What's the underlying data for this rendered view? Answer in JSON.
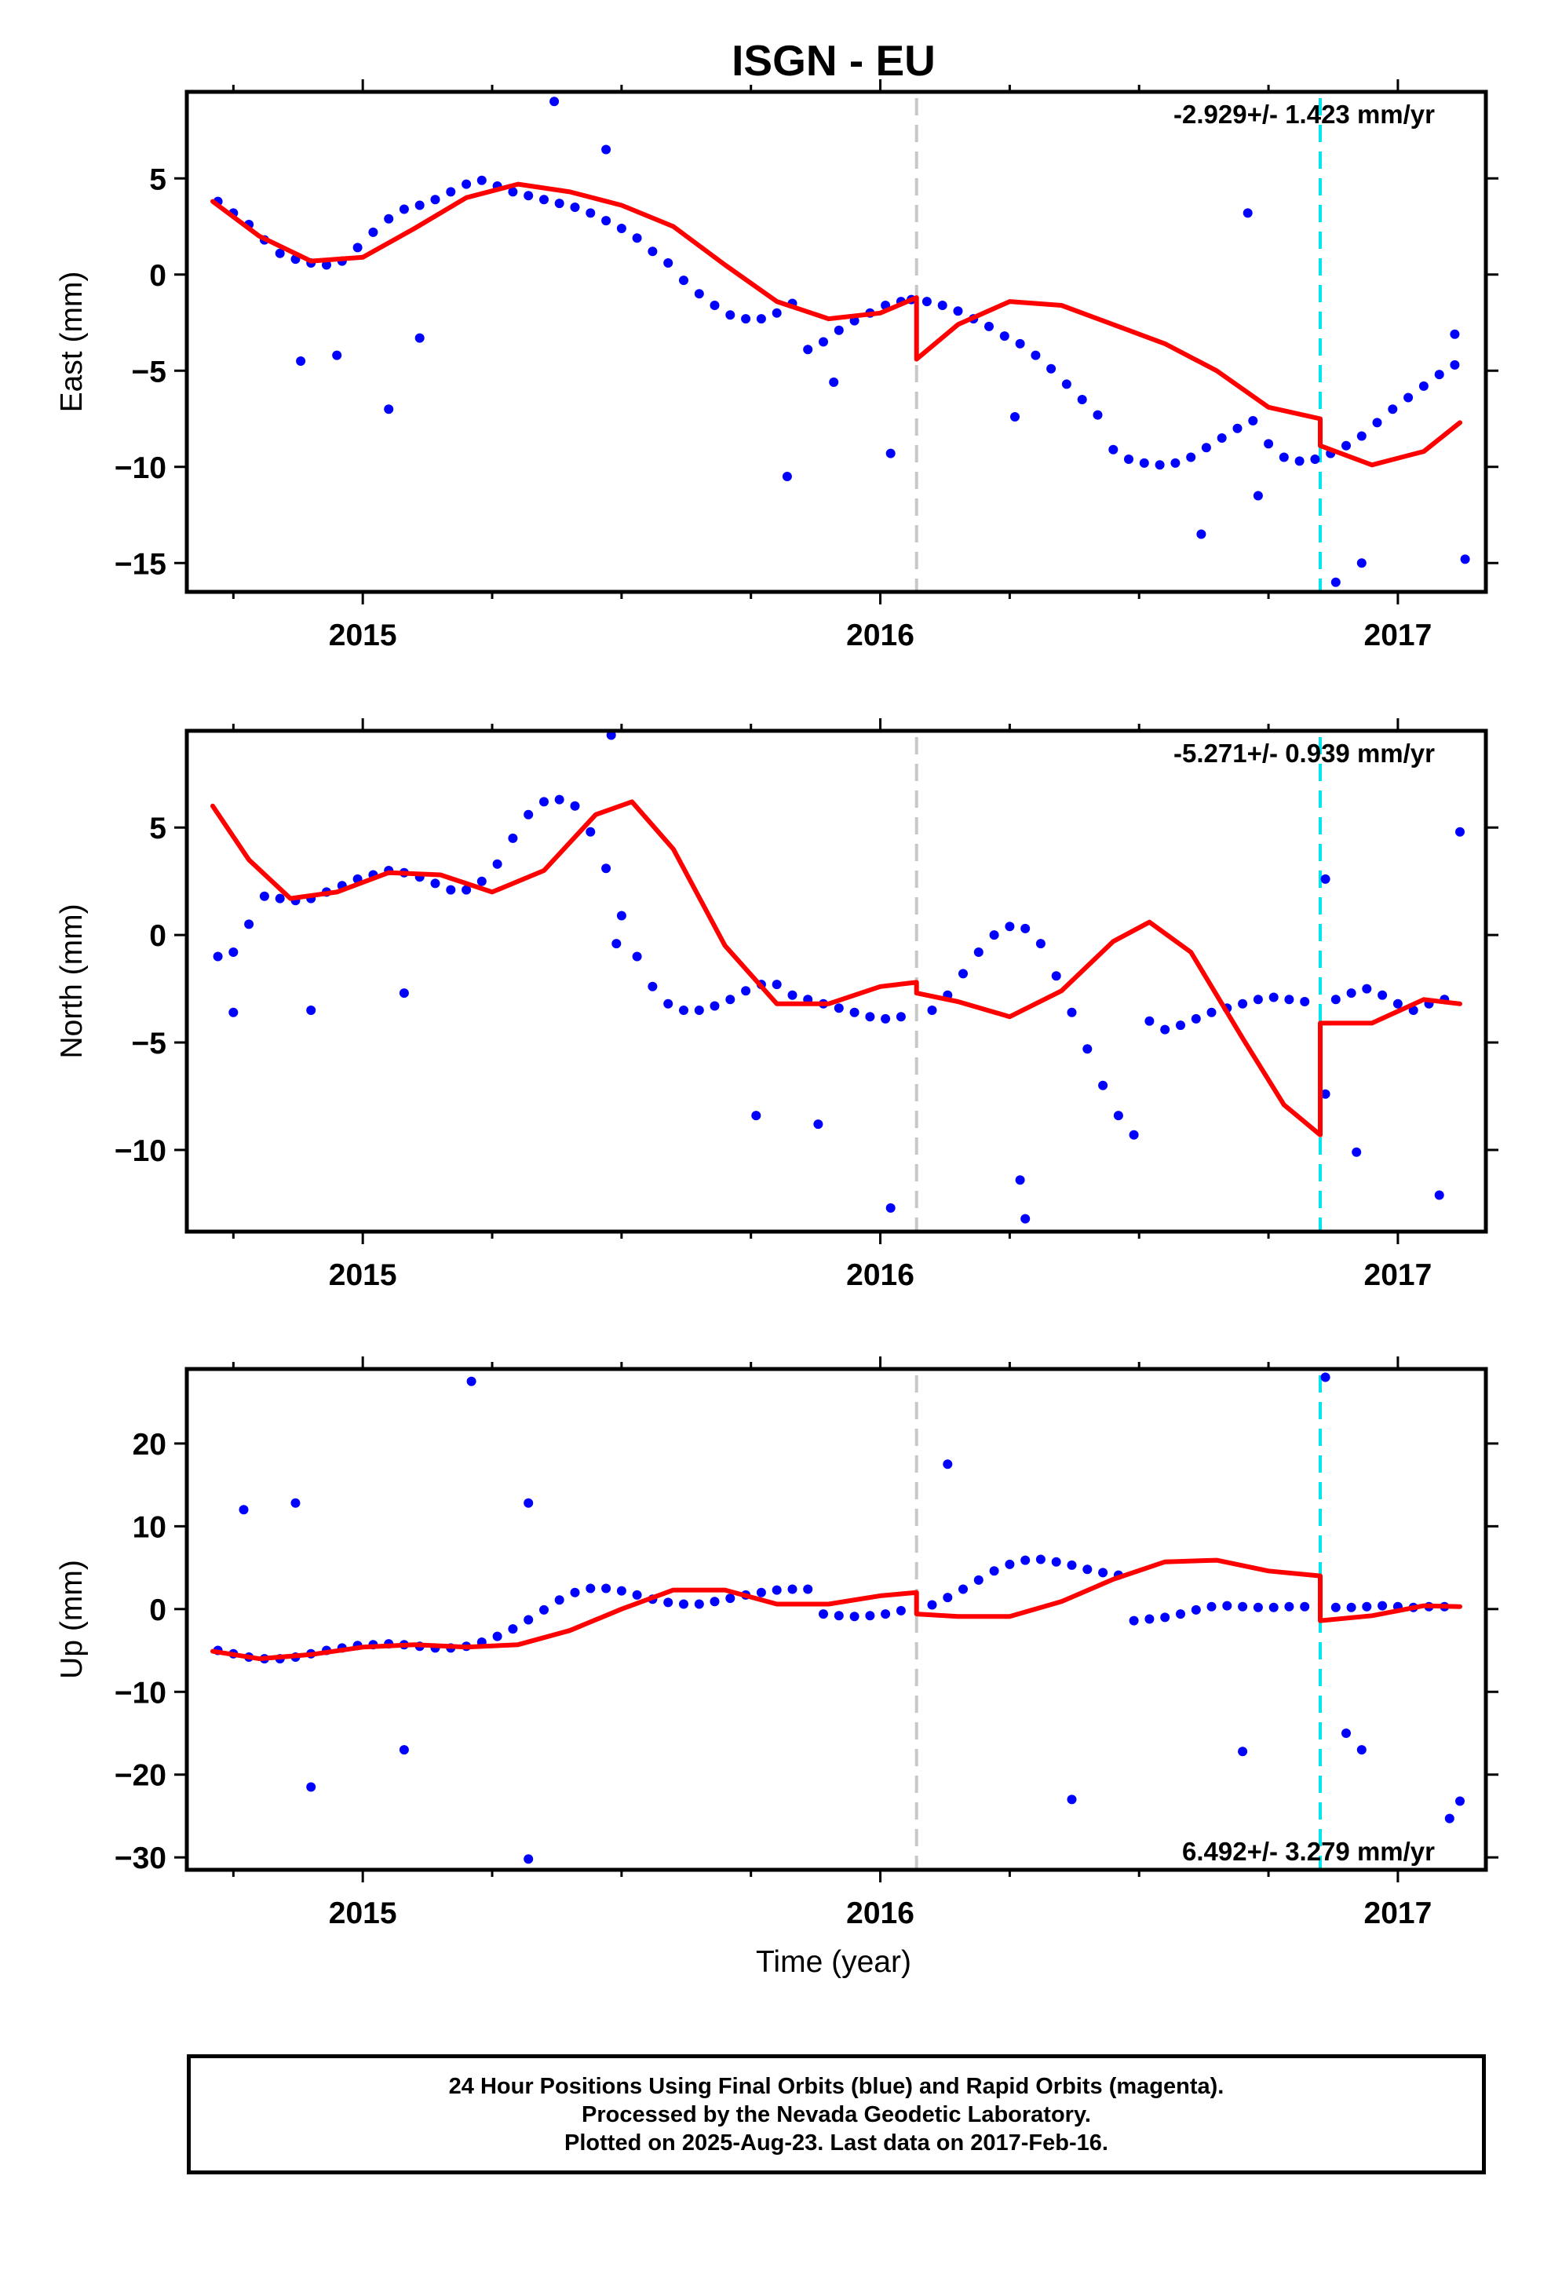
{
  "title": "ISGN - EU",
  "xlabel": "Time (year)",
  "x_tick_labels": [
    "2015",
    "2016",
    "2017"
  ],
  "footer": {
    "line1": "24 Hour Positions Using Final Orbits (blue) and Rapid Orbits (magenta).",
    "line2": "Processed by the Nevada Geodetic Laboratory.",
    "line3": "Plotted on 2025-Aug-23. Last data on 2017-Feb-16."
  },
  "chart_data": [
    {
      "type": "scatter",
      "title": "ISGN - EU",
      "xlabel": "",
      "ylabel": "East (mm)",
      "xlim": [
        2014.66,
        2017.17
      ],
      "ylim": [
        -16.5,
        9.5
      ],
      "yticks": [
        5,
        0,
        -5,
        -10,
        -15
      ],
      "ytick_labels": [
        "5",
        "0",
        "−5",
        "−10",
        "−15"
      ],
      "rate_label": "-2.929+/- 1.423 mm/yr",
      "rate_position": "top-right",
      "grid": false,
      "event_lines": [
        {
          "x": 2016.07,
          "color": "#c8c8c8"
        },
        {
          "x": 2016.85,
          "color": "#00e5ee"
        }
      ],
      "colors": {
        "points": "#0000ff",
        "model": "#ff0000"
      },
      "series": [
        {
          "kind": "points",
          "x": [
            2014.72,
            2014.75,
            2014.78,
            2014.81,
            2014.84,
            2014.87,
            2014.9,
            2014.93,
            2014.96,
            2014.99,
            2015.02,
            2015.05,
            2015.08,
            2015.11,
            2015.14,
            2015.17,
            2015.2,
            2015.23,
            2015.26,
            2015.29,
            2015.32,
            2015.35,
            2015.38,
            2015.41,
            2015.44,
            2015.47,
            2015.5,
            2015.53,
            2015.56,
            2015.59,
            2015.62,
            2015.65,
            2015.68,
            2015.71,
            2015.74,
            2015.77,
            2015.8,
            2015.83,
            2015.86,
            2015.89,
            2015.92,
            2015.95,
            2015.98,
            2016.01,
            2016.04,
            2016.06,
            2016.09,
            2016.12,
            2016.15,
            2016.18,
            2016.21,
            2016.24,
            2016.27,
            2016.3,
            2016.33,
            2016.36,
            2016.39,
            2016.42,
            2016.45,
            2016.48,
            2016.51,
            2016.54,
            2016.57,
            2016.6,
            2016.63,
            2016.66,
            2016.69,
            2016.72,
            2016.75,
            2016.78,
            2016.81,
            2016.84,
            2016.87,
            2016.9,
            2016.93,
            2016.96,
            2016.99,
            2017.02,
            2017.05,
            2017.08,
            2017.11,
            2014.88,
            2014.95,
            2015.05,
            2015.11,
            2015.37,
            2015.47,
            2015.82,
            2015.91,
            2016.02,
            2016.26,
            2016.62,
            2016.71,
            2016.73,
            2016.88,
            2016.93,
            2017.13,
            2017.11
          ],
          "y": [
            3.8,
            3.2,
            2.6,
            1.8,
            1.1,
            0.8,
            0.6,
            0.5,
            0.7,
            1.4,
            2.2,
            2.9,
            3.4,
            3.6,
            3.9,
            4.3,
            4.7,
            4.9,
            4.6,
            4.3,
            4.1,
            3.9,
            3.7,
            3.5,
            3.2,
            2.8,
            2.4,
            1.9,
            1.2,
            0.6,
            -0.3,
            -1.0,
            -1.6,
            -2.1,
            -2.3,
            -2.3,
            -2.0,
            -1.5,
            -3.9,
            -3.5,
            -2.9,
            -2.4,
            -2.0,
            -1.6,
            -1.4,
            -1.3,
            -1.4,
            -1.6,
            -1.9,
            -2.3,
            -2.7,
            -3.2,
            -3.6,
            -4.2,
            -4.9,
            -5.7,
            -6.5,
            -7.3,
            -9.1,
            -9.6,
            -9.8,
            -9.9,
            -9.8,
            -9.5,
            -9.0,
            -8.5,
            -8.0,
            -7.6,
            -8.8,
            -9.5,
            -9.7,
            -9.6,
            -9.3,
            -8.9,
            -8.4,
            -7.7,
            -7.0,
            -6.4,
            -5.8,
            -5.2,
            -4.7,
            -4.5,
            -4.2,
            -7.0,
            -3.3,
            9.0,
            6.5,
            -10.5,
            -5.6,
            -9.3,
            -7.4,
            -13.5,
            3.2,
            -11.5,
            -16.0,
            -15.0,
            -14.8,
            -3.1
          ],
          "note": ""
        },
        {
          "kind": "model",
          "x": [
            2014.71,
            2014.8,
            2014.9,
            2015.0,
            2015.1,
            2015.2,
            2015.3,
            2015.4,
            2015.5,
            2015.6,
            2015.7,
            2015.8,
            2015.9,
            2016.0,
            2016.07,
            2016.07,
            2016.15,
            2016.25,
            2016.35,
            2016.45,
            2016.55,
            2016.65,
            2016.75,
            2016.85,
            2016.85,
            2016.95,
            2017.05,
            2017.12
          ],
          "y": [
            3.8,
            2.0,
            0.7,
            0.9,
            2.4,
            4.0,
            4.7,
            4.3,
            3.6,
            2.5,
            0.5,
            -1.4,
            -2.3,
            -2.0,
            -1.2,
            -4.4,
            -2.6,
            -1.4,
            -1.6,
            -2.6,
            -3.6,
            -5.0,
            -6.9,
            -7.5,
            -8.9,
            -9.9,
            -9.2,
            -7.7
          ]
        }
      ]
    },
    {
      "type": "scatter",
      "xlabel": "",
      "ylabel": "North (mm)",
      "xlim": [
        2014.66,
        2017.17
      ],
      "ylim": [
        -13.8,
        9.5
      ],
      "yticks": [
        5,
        0,
        -5,
        -10
      ],
      "ytick_labels": [
        "5",
        "0",
        "−5",
        "−10"
      ],
      "rate_label": "-5.271+/- 0.939 mm/yr",
      "rate_position": "top-right",
      "grid": false,
      "event_lines": [
        {
          "x": 2016.07,
          "color": "#c8c8c8"
        },
        {
          "x": 2016.85,
          "color": "#00e5ee"
        }
      ],
      "colors": {
        "points": "#0000ff",
        "model": "#ff0000"
      },
      "series": [
        {
          "kind": "points",
          "x": [
            2014.72,
            2014.75,
            2014.78,
            2014.81,
            2014.84,
            2014.87,
            2014.9,
            2014.93,
            2014.96,
            2014.99,
            2015.02,
            2015.05,
            2015.08,
            2015.11,
            2015.14,
            2015.17,
            2015.2,
            2015.23,
            2015.26,
            2015.29,
            2015.32,
            2015.35,
            2015.38,
            2015.41,
            2015.44,
            2015.47,
            2015.5,
            2015.53,
            2015.56,
            2015.59,
            2015.62,
            2015.65,
            2015.68,
            2015.71,
            2015.74,
            2015.77,
            2015.8,
            2015.83,
            2015.86,
            2015.89,
            2015.92,
            2015.95,
            2015.98,
            2016.01,
            2016.04,
            2016.1,
            2016.13,
            2016.16,
            2016.19,
            2016.22,
            2016.25,
            2016.28,
            2016.31,
            2016.34,
            2016.37,
            2016.4,
            2016.43,
            2016.46,
            2016.49,
            2016.52,
            2016.55,
            2016.58,
            2016.61,
            2016.64,
            2016.67,
            2016.7,
            2016.73,
            2016.76,
            2016.79,
            2016.82,
            2016.88,
            2016.91,
            2016.94,
            2016.97,
            2017.0,
            2017.03,
            2017.06,
            2017.09,
            2014.75,
            2014.9,
            2015.08,
            2015.48,
            2015.76,
            2015.88,
            2016.02,
            2016.27,
            2016.28,
            2016.86,
            2016.86,
            2016.92,
            2017.12,
            2017.08,
            2015.49
          ],
          "y": [
            -1.0,
            -0.8,
            0.5,
            1.8,
            1.7,
            1.6,
            1.7,
            2.0,
            2.3,
            2.6,
            2.8,
            3.0,
            2.9,
            2.7,
            2.4,
            2.1,
            2.1,
            2.5,
            3.3,
            4.5,
            5.6,
            6.2,
            6.3,
            6.0,
            4.8,
            3.1,
            0.9,
            -1.0,
            -2.4,
            -3.2,
            -3.5,
            -3.5,
            -3.3,
            -3.0,
            -2.6,
            -2.3,
            -2.3,
            -2.8,
            -3.0,
            -3.2,
            -3.4,
            -3.6,
            -3.8,
            -3.9,
            -3.8,
            -3.5,
            -2.8,
            -1.8,
            -0.8,
            0.0,
            0.4,
            0.3,
            -0.4,
            -1.9,
            -3.6,
            -5.3,
            -7.0,
            -8.4,
            -9.3,
            -4.0,
            -4.4,
            -4.2,
            -3.9,
            -3.6,
            -3.4,
            -3.2,
            -3.0,
            -2.9,
            -3.0,
            -3.1,
            -3.0,
            -2.7,
            -2.5,
            -2.8,
            -3.2,
            -3.5,
            -3.2,
            -3.0,
            -3.6,
            -3.5,
            -2.7,
            9.3,
            -8.4,
            -8.8,
            -12.7,
            -11.4,
            -13.2,
            -7.4,
            2.6,
            -10.1,
            4.8,
            -12.1,
            -0.4
          ],
          "note": ""
        },
        {
          "kind": "model",
          "x": [
            2014.71,
            2014.78,
            2014.86,
            2014.95,
            2015.05,
            2015.15,
            2015.25,
            2015.35,
            2015.45,
            2015.52,
            2015.6,
            2015.7,
            2015.8,
            2015.9,
            2016.0,
            2016.07,
            2016.07,
            2016.15,
            2016.25,
            2016.35,
            2016.45,
            2016.52,
            2016.6,
            2016.7,
            2016.78,
            2016.85,
            2016.85,
            2016.95,
            2017.05,
            2017.12
          ],
          "y": [
            6.0,
            3.5,
            1.7,
            2.0,
            2.9,
            2.8,
            2.0,
            3.0,
            5.6,
            6.2,
            4.0,
            -0.5,
            -3.2,
            -3.2,
            -2.4,
            -2.2,
            -2.7,
            -3.1,
            -3.8,
            -2.6,
            -0.3,
            0.6,
            -0.8,
            -4.8,
            -7.9,
            -9.3,
            -4.1,
            -4.1,
            -3.0,
            -3.2
          ]
        }
      ]
    },
    {
      "type": "scatter",
      "xlabel": "Time (year)",
      "ylabel": "Up (mm)",
      "xlim": [
        2014.66,
        2017.17
      ],
      "ylim": [
        -31.5,
        29.0
      ],
      "yticks": [
        20,
        10,
        0,
        -10,
        -20,
        -30
      ],
      "ytick_labels": [
        "20",
        "10",
        "0",
        "−10",
        "−20",
        "−30"
      ],
      "rate_label": "6.492+/- 3.279 mm/yr",
      "rate_position": "bottom-right",
      "grid": false,
      "event_lines": [
        {
          "x": 2016.07,
          "color": "#c8c8c8"
        },
        {
          "x": 2016.85,
          "color": "#00e5ee"
        }
      ],
      "colors": {
        "points": "#0000ff",
        "model": "#ff0000"
      },
      "series": [
        {
          "kind": "points",
          "x": [
            2014.72,
            2014.75,
            2014.78,
            2014.81,
            2014.84,
            2014.87,
            2014.9,
            2014.93,
            2014.96,
            2014.99,
            2015.02,
            2015.05,
            2015.08,
            2015.11,
            2015.14,
            2015.17,
            2015.2,
            2015.23,
            2015.26,
            2015.29,
            2015.32,
            2015.35,
            2015.38,
            2015.41,
            2015.44,
            2015.47,
            2015.5,
            2015.53,
            2015.56,
            2015.59,
            2015.62,
            2015.65,
            2015.68,
            2015.71,
            2015.74,
            2015.77,
            2015.8,
            2015.83,
            2015.86,
            2015.89,
            2015.92,
            2015.95,
            2015.98,
            2016.01,
            2016.04,
            2016.1,
            2016.13,
            2016.16,
            2016.19,
            2016.22,
            2016.25,
            2016.28,
            2016.31,
            2016.34,
            2016.37,
            2016.4,
            2016.43,
            2016.46,
            2016.49,
            2016.52,
            2016.55,
            2016.58,
            2016.61,
            2016.64,
            2016.67,
            2016.7,
            2016.73,
            2016.76,
            2016.79,
            2016.82,
            2016.88,
            2016.91,
            2016.94,
            2016.97,
            2017.0,
            2017.03,
            2017.06,
            2017.09,
            2014.77,
            2014.87,
            2015.21,
            2015.32,
            2015.32,
            2016.13,
            2016.37,
            2016.7,
            2016.86,
            2016.9,
            2016.93,
            2017.12,
            2017.1,
            2014.9,
            2015.08
          ],
          "y": [
            -5.0,
            -5.4,
            -5.8,
            -6.0,
            -6.0,
            -5.8,
            -5.4,
            -5.0,
            -4.7,
            -4.4,
            -4.3,
            -4.2,
            -4.3,
            -4.5,
            -4.7,
            -4.7,
            -4.5,
            -4.0,
            -3.3,
            -2.4,
            -1.3,
            -0.1,
            1.1,
            2.0,
            2.5,
            2.5,
            2.2,
            1.7,
            1.2,
            0.8,
            0.6,
            0.6,
            0.9,
            1.3,
            1.7,
            2.0,
            2.3,
            2.4,
            2.4,
            -0.6,
            -0.8,
            -0.9,
            -0.8,
            -0.6,
            -0.2,
            0.5,
            1.4,
            2.4,
            3.5,
            4.6,
            5.4,
            5.9,
            6.0,
            5.7,
            5.3,
            4.8,
            4.4,
            4.1,
            -1.4,
            -1.2,
            -1.0,
            -0.6,
            -0.1,
            0.3,
            0.4,
            0.3,
            0.2,
            0.2,
            0.3,
            0.3,
            0.2,
            0.2,
            0.3,
            0.4,
            0.3,
            0.2,
            0.3,
            0.3,
            12.0,
            12.8,
            27.5,
            -30.2,
            12.8,
            17.5,
            -23.0,
            -17.2,
            28.0,
            -15.0,
            -17.0,
            -23.2,
            -25.3,
            -21.5,
            -17.0
          ],
          "note": ""
        },
        {
          "kind": "model",
          "x": [
            2014.71,
            2014.8,
            2014.9,
            2015.0,
            2015.1,
            2015.2,
            2015.3,
            2015.4,
            2015.5,
            2015.6,
            2015.7,
            2015.8,
            2015.9,
            2016.0,
            2016.07,
            2016.07,
            2016.15,
            2016.25,
            2016.35,
            2016.45,
            2016.55,
            2016.65,
            2016.75,
            2016.85,
            2016.85,
            2016.95,
            2017.05,
            2017.12
          ],
          "y": [
            -5.1,
            -6.0,
            -5.5,
            -4.6,
            -4.3,
            -4.6,
            -4.3,
            -2.6,
            0.0,
            2.3,
            2.3,
            0.6,
            0.6,
            1.6,
            2.0,
            -0.6,
            -0.9,
            -0.9,
            0.9,
            3.6,
            5.7,
            5.9,
            4.6,
            4.0,
            -1.4,
            -0.8,
            0.4,
            0.3
          ]
        }
      ]
    }
  ]
}
